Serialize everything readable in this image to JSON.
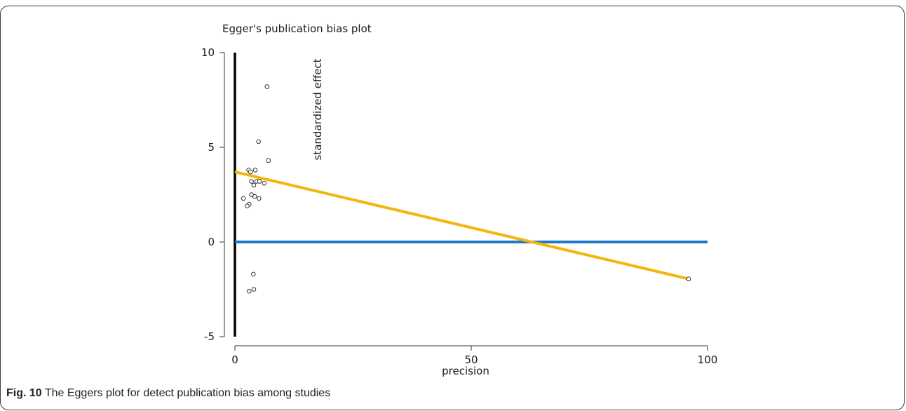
{
  "chart_data": {
    "type": "scatter",
    "title": "Egger's publication bias plot",
    "xlabel": "precision",
    "ylabel": "standardized effect",
    "xlim": [
      0,
      100
    ],
    "ylim": [
      -5,
      10
    ],
    "x_ticks": [
      0,
      50,
      100
    ],
    "y_ticks": [
      -5,
      0,
      5,
      10
    ],
    "points": [
      {
        "x": 6.8,
        "y": 8.2
      },
      {
        "x": 5.0,
        "y": 5.3
      },
      {
        "x": 7.1,
        "y": 4.3
      },
      {
        "x": 2.9,
        "y": 3.8
      },
      {
        "x": 3.3,
        "y": 3.7
      },
      {
        "x": 4.3,
        "y": 3.8
      },
      {
        "x": 3.5,
        "y": 3.2
      },
      {
        "x": 4.6,
        "y": 3.2
      },
      {
        "x": 5.2,
        "y": 3.2
      },
      {
        "x": 6.2,
        "y": 3.1
      },
      {
        "x": 4.0,
        "y": 3.0
      },
      {
        "x": 3.5,
        "y": 2.5
      },
      {
        "x": 4.2,
        "y": 2.4
      },
      {
        "x": 5.1,
        "y": 2.3
      },
      {
        "x": 1.8,
        "y": 2.3
      },
      {
        "x": 3.0,
        "y": 2.0
      },
      {
        "x": 2.6,
        "y": 1.9
      },
      {
        "x": 3.9,
        "y": -1.7
      },
      {
        "x": 4.0,
        "y": -2.5
      },
      {
        "x": 3.0,
        "y": -2.6
      },
      {
        "x": 96.0,
        "y": -1.95
      }
    ],
    "lines": [
      {
        "kind": "regression",
        "color": "#f2b60f",
        "x": [
          0,
          96
        ],
        "y": [
          3.7,
          -1.95
        ]
      },
      {
        "kind": "reference",
        "color": "#1e78c8",
        "x": [
          0,
          100
        ],
        "y": [
          0,
          0
        ]
      }
    ],
    "vertical_bar": {
      "x": 0,
      "y": [
        -5,
        10
      ],
      "color": "#000000"
    }
  },
  "caption": {
    "label": "Fig. 10",
    "text": " The Eggers plot for detect publication bias among studies"
  }
}
